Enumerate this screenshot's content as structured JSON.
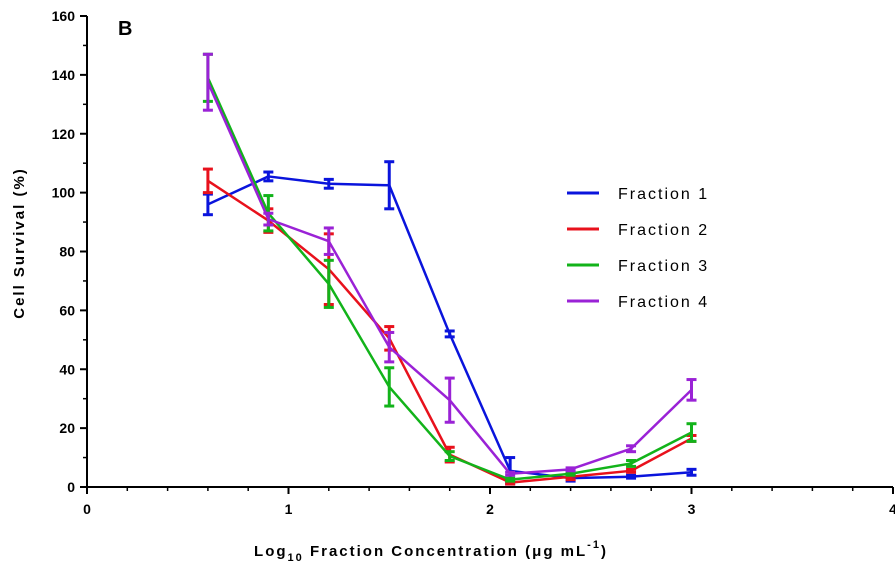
{
  "chart_data": {
    "type": "line",
    "panel_label": "B",
    "xlabel": {
      "prefix": "Log",
      "subscript": "10",
      "middle": " Fraction Concentration (",
      "mu": "μ",
      "units": "g mL",
      "superscript": "-1",
      "suffix": ")"
    },
    "ylabel": "Cell Survival (%)",
    "xlim": [
      0,
      4
    ],
    "ylim": [
      0,
      160
    ],
    "x_ticks": [
      0,
      1,
      2,
      3,
      4
    ],
    "x_tick_labels": [
      "0",
      "1",
      "2",
      "3",
      "4"
    ],
    "y_ticks": [
      0,
      20,
      40,
      60,
      80,
      100,
      120,
      140,
      160
    ],
    "y_tick_labels": [
      "0",
      "20",
      "40",
      "60",
      "80",
      "100",
      "120",
      "140",
      "160"
    ],
    "grid": false,
    "legend_position": "center-right",
    "x": [
      0.6,
      0.9,
      1.2,
      1.5,
      1.8,
      2.1,
      2.4,
      2.7,
      3.0
    ],
    "series": [
      {
        "name": "Fraction 1",
        "color": "#0a14dc",
        "values": [
          96,
          105.5,
          103,
          102.5,
          52,
          5.5,
          3,
          3.5,
          5
        ],
        "errors": [
          3.5,
          1.5,
          1.5,
          8,
          1,
          4.5,
          1,
          0.5,
          1
        ]
      },
      {
        "name": "Fraction 2",
        "color": "#e8111c",
        "values": [
          104,
          90.5,
          74,
          50.5,
          11,
          1.5,
          3.5,
          5.5,
          16.5
        ],
        "errors": [
          4,
          4,
          12,
          4,
          2.5,
          0.5,
          1,
          0.5,
          1
        ]
      },
      {
        "name": "Fraction 3",
        "color": "#12b31a",
        "values": [
          139,
          93,
          69,
          34,
          10.5,
          2.5,
          4.5,
          8,
          18.5
        ],
        "errors": [
          8,
          6,
          8,
          6.5,
          1.5,
          0.5,
          0.5,
          1,
          3
        ]
      },
      {
        "name": "Fraction 4",
        "color": "#9a22d6",
        "values": [
          137.5,
          91,
          83.5,
          47.5,
          29.5,
          4.5,
          6,
          13,
          33
        ],
        "errors": [
          9.5,
          2,
          4.5,
          5,
          7.5,
          0.5,
          0.5,
          1,
          3.5
        ]
      }
    ]
  }
}
